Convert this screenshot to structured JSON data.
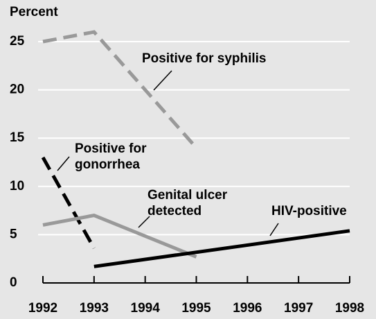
{
  "chart_data": {
    "type": "line",
    "y_label": "Percent",
    "xlim": [
      1992,
      1998
    ],
    "xticks": [
      1992,
      1993,
      1994,
      1995,
      1996,
      1997,
      1998
    ],
    "xtick_label_colors": [
      "#000000",
      "#000000",
      "#8c8c8c",
      "#000000",
      "#8c8c8c",
      "#8c8c8c",
      "#000000"
    ],
    "ylim": [
      0,
      25
    ],
    "yticks": [
      0,
      5,
      10,
      15,
      20,
      25
    ],
    "grid": true,
    "series": [
      {
        "color": "#999999",
        "style": "dashed",
        "x": [
          1992,
          1993,
          1995
        ],
        "values": [
          25,
          26,
          14
        ]
      },
      {
        "color": "#000000",
        "style": "dashed",
        "x": [
          1992,
          1993
        ],
        "values": [
          13,
          3.6
        ]
      },
      {
        "color": "#999999",
        "style": "solid",
        "x": [
          1992,
          1993,
          1995
        ],
        "values": [
          6,
          7,
          2.7
        ]
      },
      {
        "color": "#000000",
        "style": "solid",
        "x": [
          1993,
          1998
        ],
        "values": [
          1.7,
          5.4
        ]
      }
    ],
    "annotations": [
      {
        "lines": [
          "Positive for syphilis"
        ]
      },
      {
        "lines": [
          "Positive for",
          "gonorrhea"
        ]
      },
      {
        "lines": [
          "Genital ulcer",
          "detected"
        ]
      },
      {
        "lines": [
          "HIV-positive"
        ]
      }
    ]
  }
}
